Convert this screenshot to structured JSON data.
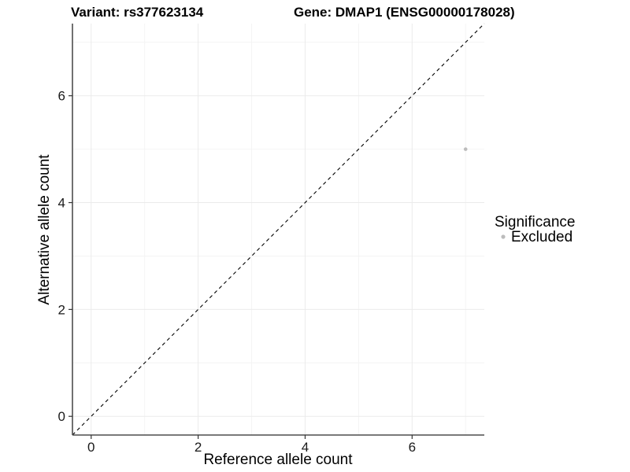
{
  "header": {
    "variant_title": "Variant: rs377623134",
    "gene_title": "Gene: DMAP1 (ENSG00000178028)"
  },
  "chart_data": {
    "type": "scatter",
    "title": "Variant: rs377623134    Gene: DMAP1 (ENSG00000178028)",
    "xlabel": "Reference allele count",
    "ylabel": "Alternative allele count",
    "xlim": [
      -0.35,
      7.35
    ],
    "ylim": [
      -0.35,
      7.35
    ],
    "x_ticks": [
      0,
      2,
      4,
      6
    ],
    "y_ticks": [
      0,
      2,
      4,
      6
    ],
    "x_minor_ticks": [
      1,
      3,
      5,
      7
    ],
    "y_minor_ticks": [
      1,
      3,
      5,
      7
    ],
    "grid": true,
    "points": [
      {
        "x": 7,
        "y": 5,
        "series": "Excluded"
      }
    ],
    "reference_line": {
      "type": "identity",
      "style": "dashed",
      "color": "#000000"
    },
    "legend": {
      "title": "Significance",
      "position": "right",
      "items": [
        {
          "label": "Excluded",
          "color": "#bcbcbc",
          "marker": "circle"
        }
      ]
    },
    "colors": {
      "point": "#bcbcbc",
      "grid_major": "#ebebeb",
      "grid_minor": "#f4f4f4",
      "axis_line": "#4d4d4d",
      "tick_mark": "#333333",
      "tick_text": "#1a1a1a"
    }
  }
}
